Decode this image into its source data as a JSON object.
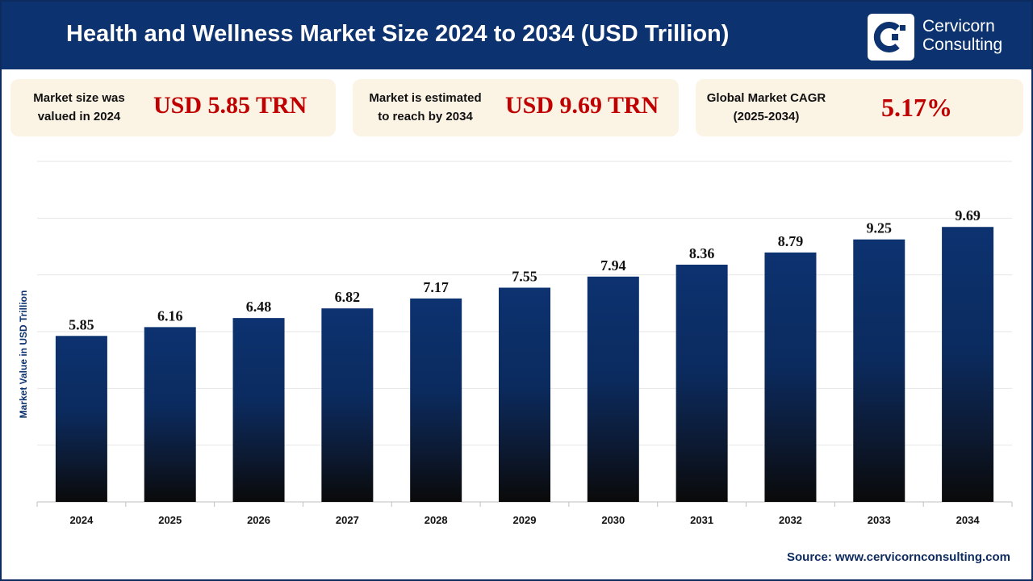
{
  "header": {
    "title": "Health and Wellness Market Size 2024 to 2034 (USD Trillion)",
    "brand_line1": "Cervicorn",
    "brand_line2": "Consulting"
  },
  "cards": [
    {
      "label_line1": "Market size was",
      "label_line2": "valued in 2024",
      "value": "USD 5.85 TRN"
    },
    {
      "label_line1": "Market is estimated",
      "label_line2": "to reach by 2034",
      "value": "USD 9.69 TRN"
    },
    {
      "label_line1": "Global Market CAGR",
      "label_line2": "(2025-2034)",
      "value": "5.17%"
    }
  ],
  "source": "Source: www.cervicornconsulting.com",
  "colors": {
    "header": "#0d3270",
    "bar_top": "#0d3270",
    "bar_bottom": "#0a0a0a",
    "value_red": "#c00000",
    "card_bg": "#fbf3e4"
  },
  "chart_data": {
    "type": "bar",
    "title": "Health and Wellness Market Size 2024 to 2034 (USD Trillion)",
    "xlabel": "",
    "ylabel": "Market Value in USD Trillion",
    "categories": [
      "2024",
      "2025",
      "2026",
      "2027",
      "2028",
      "2029",
      "2030",
      "2031",
      "2032",
      "2033",
      "2034"
    ],
    "values": [
      5.85,
      6.16,
      6.48,
      6.82,
      7.17,
      7.55,
      7.94,
      8.36,
      8.79,
      9.25,
      9.69
    ],
    "ylim": [
      0,
      12
    ],
    "grid": true,
    "data_labels": true
  }
}
